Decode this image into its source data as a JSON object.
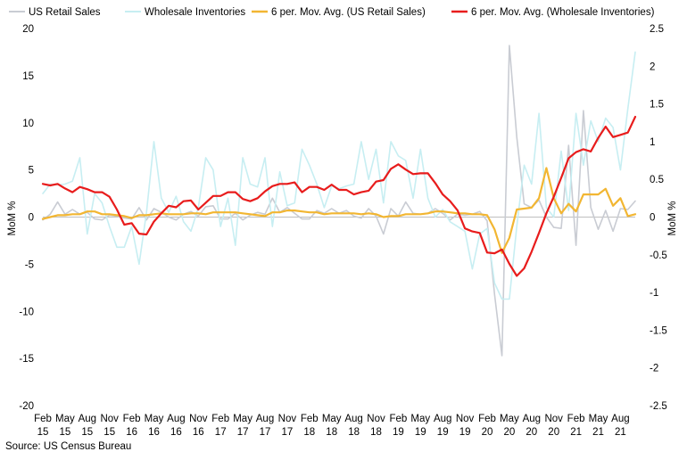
{
  "chart_data": {
    "type": "line",
    "title": "",
    "xlabel": "",
    "ylabel": "MoM %",
    "y2label": "MoM %",
    "ylim": [
      -20,
      20
    ],
    "y2lim": [
      -2.5,
      2.5
    ],
    "yticks": [
      20,
      15,
      10,
      5,
      0,
      -5,
      -10,
      -15,
      -20
    ],
    "y2ticks": [
      2.5,
      2,
      1.5,
      1,
      0.5,
      0,
      -0.5,
      -1,
      -1.5,
      -2,
      -2.5
    ],
    "x_start": "2015-02",
    "x_end": "2021-10",
    "x_ticks": [
      {
        "month": "2015-02",
        "label1": "Feb",
        "label2": "15"
      },
      {
        "month": "2015-05",
        "label1": "May",
        "label2": "15"
      },
      {
        "month": "2015-08",
        "label1": "Aug",
        "label2": "15"
      },
      {
        "month": "2015-11",
        "label1": "Nov",
        "label2": "15"
      },
      {
        "month": "2016-02",
        "label1": "Feb",
        "label2": "16"
      },
      {
        "month": "2016-05",
        "label1": "May",
        "label2": "16"
      },
      {
        "month": "2016-08",
        "label1": "Aug",
        "label2": "16"
      },
      {
        "month": "2016-11",
        "label1": "Nov",
        "label2": "16"
      },
      {
        "month": "2017-02",
        "label1": "Feb",
        "label2": "17"
      },
      {
        "month": "2017-05",
        "label1": "May",
        "label2": "17"
      },
      {
        "month": "2017-08",
        "label1": "Aug",
        "label2": "17"
      },
      {
        "month": "2017-11",
        "label1": "Nov",
        "label2": "17"
      },
      {
        "month": "2018-02",
        "label1": "Feb",
        "label2": "18"
      },
      {
        "month": "2018-05",
        "label1": "May",
        "label2": "18"
      },
      {
        "month": "2018-08",
        "label1": "Aug",
        "label2": "18"
      },
      {
        "month": "2018-11",
        "label1": "Nov",
        "label2": "18"
      },
      {
        "month": "2019-02",
        "label1": "Feb",
        "label2": "19"
      },
      {
        "month": "2019-05",
        "label1": "May",
        "label2": "19"
      },
      {
        "month": "2019-08",
        "label1": "Aug",
        "label2": "19"
      },
      {
        "month": "2019-11",
        "label1": "Nov",
        "label2": "19"
      },
      {
        "month": "2020-02",
        "label1": "Feb",
        "label2": "20"
      },
      {
        "month": "2020-05",
        "label1": "May",
        "label2": "20"
      },
      {
        "month": "2020-08",
        "label1": "Aug",
        "label2": "20"
      },
      {
        "month": "2020-11",
        "label1": "Nov",
        "label2": "20"
      },
      {
        "month": "2021-02",
        "label1": "Feb",
        "label2": "21"
      },
      {
        "month": "2021-05",
        "label1": "May",
        "label2": "21"
      },
      {
        "month": "2021-08",
        "label1": "Aug",
        "label2": "21"
      }
    ],
    "grid": false,
    "legend_position": "top",
    "series": [
      {
        "name": "US Retail Sales",
        "axis": "left",
        "color": "#c9ccd3",
        "stroke": "thin",
        "x": [
          "2015-02",
          "2015-03",
          "2015-04",
          "2015-05",
          "2015-06",
          "2015-07",
          "2015-08",
          "2015-09",
          "2015-10",
          "2015-11",
          "2015-12",
          "2016-01",
          "2016-02",
          "2016-03",
          "2016-04",
          "2016-05",
          "2016-06",
          "2016-07",
          "2016-08",
          "2016-09",
          "2016-10",
          "2016-11",
          "2016-12",
          "2017-01",
          "2017-02",
          "2017-03",
          "2017-04",
          "2017-05",
          "2017-06",
          "2017-07",
          "2017-08",
          "2017-09",
          "2017-10",
          "2017-11",
          "2017-12",
          "2018-01",
          "2018-02",
          "2018-03",
          "2018-04",
          "2018-05",
          "2018-06",
          "2018-07",
          "2018-08",
          "2018-09",
          "2018-10",
          "2018-11",
          "2018-12",
          "2019-01",
          "2019-02",
          "2019-03",
          "2019-04",
          "2019-05",
          "2019-06",
          "2019-07",
          "2019-08",
          "2019-09",
          "2019-10",
          "2019-11",
          "2019-12",
          "2020-01",
          "2020-02",
          "2020-03",
          "2020-04",
          "2020-05",
          "2020-06",
          "2020-07",
          "2020-08",
          "2020-09",
          "2020-10",
          "2020-11",
          "2020-12",
          "2021-01",
          "2021-02",
          "2021-03",
          "2021-04",
          "2021-05",
          "2021-06",
          "2021-07",
          "2021-08",
          "2021-09",
          "2021-10"
        ],
        "values": [
          -0.3,
          0.3,
          1.6,
          0.3,
          0.8,
          0.3,
          0.5,
          -0.2,
          -0.3,
          0.2,
          0.1,
          -0.1,
          -0.2,
          1.0,
          -0.3,
          0.9,
          0.5,
          0.0,
          -0.3,
          0.3,
          0.6,
          0.1,
          1.1,
          1.2,
          -0.2,
          -0.2,
          0.4,
          -0.3,
          0.2,
          0.5,
          0.3,
          2.0,
          0.5,
          1.0,
          0.4,
          -0.2,
          -0.2,
          0.7,
          0.4,
          0.9,
          0.4,
          0.7,
          0.1,
          -0.1,
          0.9,
          0.1,
          -1.8,
          0.9,
          0.1,
          1.6,
          0.4,
          0.3,
          0.4,
          0.9,
          0.4,
          -0.3,
          0.3,
          0.2,
          0.3,
          0.6,
          -0.4,
          -8.2,
          -14.7,
          18.2,
          8.5,
          1.4,
          1.0,
          1.8,
          0.0,
          -1.1,
          -1.2,
          7.6,
          -3.0,
          11.3,
          1.0,
          -1.3,
          0.7,
          -1.5,
          0.9,
          0.8,
          1.7
        ]
      },
      {
        "name": "Wholesale Inventories",
        "axis": "left",
        "color": "#c7eef2",
        "stroke": "thin",
        "x": [
          "2015-02",
          "2015-03",
          "2015-04",
          "2015-05",
          "2015-06",
          "2015-07",
          "2015-08",
          "2015-09",
          "2015-10",
          "2015-11",
          "2015-12",
          "2016-01",
          "2016-02",
          "2016-03",
          "2016-04",
          "2016-05",
          "2016-06",
          "2016-07",
          "2016-08",
          "2016-09",
          "2016-10",
          "2016-11",
          "2016-12",
          "2017-01",
          "2017-02",
          "2017-03",
          "2017-04",
          "2017-05",
          "2017-06",
          "2017-07",
          "2017-08",
          "2017-09",
          "2017-10",
          "2017-11",
          "2017-12",
          "2018-01",
          "2018-02",
          "2018-03",
          "2018-04",
          "2018-05",
          "2018-06",
          "2018-07",
          "2018-08",
          "2018-09",
          "2018-10",
          "2018-11",
          "2018-12",
          "2019-01",
          "2019-02",
          "2019-03",
          "2019-04",
          "2019-05",
          "2019-06",
          "2019-07",
          "2019-08",
          "2019-09",
          "2019-10",
          "2019-11",
          "2019-12",
          "2020-01",
          "2020-02",
          "2020-03",
          "2020-04",
          "2020-05",
          "2020-06",
          "2020-07",
          "2020-08",
          "2020-09",
          "2020-10",
          "2020-11",
          "2020-12",
          "2021-01",
          "2021-02",
          "2021-03",
          "2021-04",
          "2021-05",
          "2021-06",
          "2021-07",
          "2021-08",
          "2021-09",
          "2021-10"
        ],
        "values": [
          2.5,
          3.5,
          3.4,
          3.5,
          3.8,
          6.3,
          -1.8,
          2.5,
          1.5,
          -1.0,
          -3.2,
          -3.2,
          -1.0,
          -5.0,
          0.5,
          8.0,
          2.0,
          0.5,
          2.2,
          -0.5,
          -1.5,
          1.0,
          6.3,
          5.0,
          -1.0,
          2.0,
          -3.0,
          6.3,
          3.5,
          3.2,
          6.3,
          -1.0,
          4.8,
          1.2,
          1.5,
          7.2,
          5.5,
          3.5,
          1.0,
          3.3,
          3.0,
          3.3,
          3.5,
          8.0,
          4.0,
          7.2,
          1.5,
          8.0,
          6.5,
          6.0,
          2.0,
          7.2,
          2.0,
          0.0,
          0.8,
          -0.5,
          -1.0,
          -1.5,
          -5.5,
          -1.8,
          -1.2,
          -7.0,
          -8.7,
          -8.7,
          -1.0,
          5.5,
          3.5,
          11.0,
          1.0,
          0.0,
          7.0,
          0.7,
          11.0,
          5.5,
          10.2,
          8.0,
          10.5,
          9.5,
          5.0,
          11.5,
          17.5
        ]
      },
      {
        "name": "6 per. Mov. Avg. (US Retail Sales)",
        "axis": "left",
        "color": "#f2b632",
        "stroke": "thick",
        "x": [
          "2015-02",
          "2015-03",
          "2015-04",
          "2015-05",
          "2015-06",
          "2015-07",
          "2015-08",
          "2015-09",
          "2015-10",
          "2015-11",
          "2015-12",
          "2016-01",
          "2016-02",
          "2016-03",
          "2016-04",
          "2016-05",
          "2016-06",
          "2016-07",
          "2016-08",
          "2016-09",
          "2016-10",
          "2016-11",
          "2016-12",
          "2017-01",
          "2017-02",
          "2017-03",
          "2017-04",
          "2017-05",
          "2017-06",
          "2017-07",
          "2017-08",
          "2017-09",
          "2017-10",
          "2017-11",
          "2017-12",
          "2018-01",
          "2018-02",
          "2018-03",
          "2018-04",
          "2018-05",
          "2018-06",
          "2018-07",
          "2018-08",
          "2018-09",
          "2018-10",
          "2018-11",
          "2018-12",
          "2019-01",
          "2019-02",
          "2019-03",
          "2019-04",
          "2019-05",
          "2019-06",
          "2019-07",
          "2019-08",
          "2019-09",
          "2019-10",
          "2019-11",
          "2019-12",
          "2020-01",
          "2020-02",
          "2020-03",
          "2020-04",
          "2020-05",
          "2020-06",
          "2020-07",
          "2020-08",
          "2020-09",
          "2020-10",
          "2020-11",
          "2020-12",
          "2021-01",
          "2021-02",
          "2021-03",
          "2021-04",
          "2021-05",
          "2021-06",
          "2021-07",
          "2021-08",
          "2021-09",
          "2021-10"
        ],
        "values": [
          -0.2,
          0.0,
          0.2,
          0.2,
          0.3,
          0.3,
          0.6,
          0.6,
          0.3,
          0.3,
          0.2,
          0.1,
          -0.1,
          0.2,
          0.2,
          0.3,
          0.4,
          0.3,
          0.3,
          0.3,
          0.4,
          0.4,
          0.3,
          0.5,
          0.5,
          0.5,
          0.5,
          0.4,
          0.3,
          0.2,
          0.1,
          0.5,
          0.5,
          0.7,
          0.7,
          0.6,
          0.5,
          0.5,
          0.3,
          0.4,
          0.4,
          0.4,
          0.4,
          0.3,
          0.4,
          0.3,
          0.0,
          0.1,
          0.1,
          0.3,
          0.3,
          0.3,
          0.4,
          0.6,
          0.6,
          0.5,
          0.4,
          0.4,
          0.3,
          0.3,
          0.2,
          -1.3,
          -3.8,
          -2.2,
          0.8,
          0.9,
          1.0,
          2.0,
          5.2,
          2.0,
          0.4,
          1.4,
          0.6,
          2.4,
          2.4,
          2.4,
          3.0,
          1.2,
          2.0,
          0.1,
          0.3
        ]
      },
      {
        "name": "6 per. Mov. Avg. (Wholesale Inventories)",
        "axis": "right",
        "color": "#e81c1c",
        "stroke": "thick",
        "x": [
          "2015-02",
          "2015-03",
          "2015-04",
          "2015-05",
          "2015-06",
          "2015-07",
          "2015-08",
          "2015-09",
          "2015-10",
          "2015-11",
          "2015-12",
          "2016-01",
          "2016-02",
          "2016-03",
          "2016-04",
          "2016-05",
          "2016-06",
          "2016-07",
          "2016-08",
          "2016-09",
          "2016-10",
          "2016-11",
          "2016-12",
          "2017-01",
          "2017-02",
          "2017-03",
          "2017-04",
          "2017-05",
          "2017-06",
          "2017-07",
          "2017-08",
          "2017-09",
          "2017-10",
          "2017-11",
          "2017-12",
          "2018-01",
          "2018-02",
          "2018-03",
          "2018-04",
          "2018-05",
          "2018-06",
          "2018-07",
          "2018-08",
          "2018-09",
          "2018-10",
          "2018-11",
          "2018-12",
          "2019-01",
          "2019-02",
          "2019-03",
          "2019-04",
          "2019-05",
          "2019-06",
          "2019-07",
          "2019-08",
          "2019-09",
          "2019-10",
          "2019-11",
          "2019-12",
          "2020-01",
          "2020-02",
          "2020-03",
          "2020-04",
          "2020-05",
          "2020-06",
          "2020-07",
          "2020-08",
          "2020-09",
          "2020-10",
          "2020-11",
          "2020-12",
          "2021-01",
          "2021-02",
          "2021-03",
          "2021-04",
          "2021-05",
          "2021-06",
          "2021-07",
          "2021-08",
          "2021-09",
          "2021-10"
        ],
        "values": [
          0.44,
          0.42,
          0.44,
          0.38,
          0.33,
          0.4,
          0.37,
          0.33,
          0.33,
          0.27,
          0.1,
          -0.1,
          -0.08,
          -0.22,
          -0.23,
          -0.06,
          0.05,
          0.15,
          0.13,
          0.21,
          0.22,
          0.1,
          0.19,
          0.28,
          0.28,
          0.33,
          0.33,
          0.24,
          0.21,
          0.25,
          0.34,
          0.41,
          0.44,
          0.44,
          0.46,
          0.33,
          0.4,
          0.4,
          0.36,
          0.43,
          0.36,
          0.36,
          0.3,
          0.33,
          0.35,
          0.47,
          0.49,
          0.64,
          0.7,
          0.63,
          0.57,
          0.58,
          0.58,
          0.45,
          0.3,
          0.21,
          0.09,
          -0.15,
          -0.19,
          -0.21,
          -0.47,
          -0.48,
          -0.43,
          -0.62,
          -0.78,
          -0.68,
          -0.46,
          -0.21,
          0.05,
          0.27,
          0.52,
          0.78,
          0.86,
          0.9,
          0.87,
          1.05,
          1.2,
          1.06,
          1.09,
          1.12,
          1.33
        ]
      }
    ]
  },
  "source": "Source: US Census Bureau"
}
